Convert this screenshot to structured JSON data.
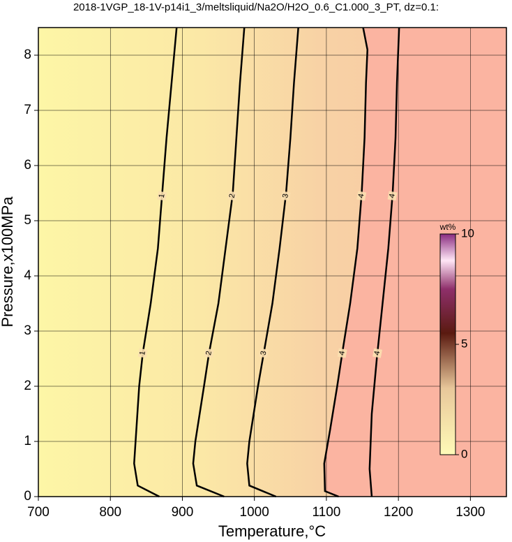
{
  "chart_data": {
    "type": "contour",
    "title": "2018-1VGP_18-1V-p14i1_3/meltsliquid/Na2O/H2O_0.6_C1.000_3_PT, dz=0.1:",
    "x_label": "Temperature,°C",
    "y_label": "Pressure,x100MPa",
    "xlim": [
      700,
      1350
    ],
    "ylim": [
      0,
      8.5
    ],
    "xticks": [
      700,
      800,
      900,
      1000,
      1100,
      1200,
      1300
    ],
    "yticks": [
      0,
      1,
      2,
      3,
      4,
      5,
      6,
      7,
      8
    ],
    "grid": true,
    "series": [
      {
        "name": "1",
        "color": "#000000",
        "x": [
          868,
          838,
          833,
          835,
          840,
          845,
          856,
          866,
          872,
          878,
          885,
          892
        ],
        "y": [
          0,
          0.2,
          0.6,
          1.0,
          2.0,
          2.6,
          3.5,
          4.5,
          5.5,
          6.5,
          7.5,
          8.5
        ]
      },
      {
        "name": "2",
        "color": "#000000",
        "x": [
          958,
          920,
          915,
          918,
          930,
          937,
          950,
          960,
          970,
          975,
          980,
          986
        ],
        "y": [
          0,
          0.2,
          0.6,
          1.0,
          2.0,
          2.6,
          3.5,
          4.5,
          5.5,
          6.5,
          7.5,
          8.5
        ]
      },
      {
        "name": "3",
        "color": "#000000",
        "x": [
          1030,
          993,
          990,
          993,
          1005,
          1013,
          1025,
          1035,
          1044,
          1050,
          1055,
          1061
        ],
        "y": [
          0,
          0.2,
          0.6,
          1.0,
          2.0,
          2.6,
          3.5,
          4.5,
          5.5,
          6.5,
          7.5,
          8.5
        ]
      },
      {
        "name": "4",
        "color": "#000000",
        "x": [
          1117,
          1098,
          1097,
          1105,
          1115,
          1122,
          1133,
          1143,
          1149,
          1153,
          1155,
          1157,
          1151
        ],
        "y": [
          0,
          0.1,
          0.6,
          1.2,
          2.0,
          2.6,
          3.5,
          4.5,
          5.5,
          6.5,
          7.5,
          8.1,
          8.5
        ]
      },
      {
        "name": "4",
        "color": "#000000",
        "x": [
          1163,
          1160,
          1163,
          1170,
          1178,
          1186,
          1192,
          1196,
          1198,
          1201
        ],
        "y": [
          0,
          0.5,
          1.5,
          2.5,
          3.5,
          4.5,
          5.5,
          6.5,
          7.5,
          8.5
        ]
      }
    ],
    "colorbar": {
      "label": "wt%",
      "lim": [
        0,
        10
      ],
      "ticks": [
        0,
        5,
        10
      ]
    }
  }
}
